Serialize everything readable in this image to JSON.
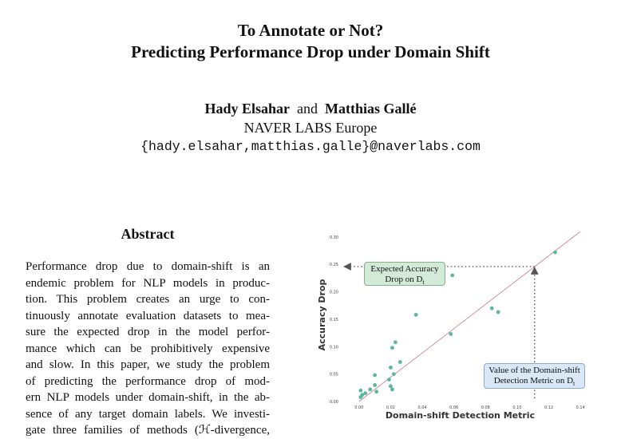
{
  "title": {
    "line1": "To Annotate or Not?",
    "line2": "Predicting Performance Drop under Domain Shift"
  },
  "authors": {
    "author1": "Hady Elsahar",
    "conj": "and",
    "author2": "Matthias Gallé",
    "affiliation": "NAVER LABS Europe",
    "email": "{hady.elsahar,matthias.galle}@naverlabs.com"
  },
  "abstract": {
    "heading": "Abstract",
    "lines": [
      "Performance drop due to domain-shift is an",
      "endemic problem for NLP models in produc-",
      "tion.  This problem creates an urge to con-",
      "tinuously annotate evaluation datasets to mea-",
      "sure the expected drop in the model perfor-",
      "mance which can be prohibitively expensive",
      "and slow.  In this paper, we study the problem",
      "of predicting the performance drop of mod-",
      "ern NLP models under domain-shift, in the ab-",
      "sence of any target domain labels.  We investi-",
      "gate three families of methods (ℋ-divergence,"
    ]
  },
  "figure": {
    "annotation_expected_line1": "Expected Accuracy",
    "annotation_expected_line2": "Drop on D",
    "annotation_value_line1": "Value of the Domain-shift",
    "annotation_value_line2": "Detection Metric on D",
    "subscript": "t"
  },
  "chart_data": {
    "type": "scatter",
    "xlabel": "Domain-shift Detection Metric",
    "ylabel": "Accuracy Drop",
    "xlim": [
      -0.01,
      0.15
    ],
    "ylim": [
      0.0,
      0.31
    ],
    "x_ticks": [
      "0.00",
      "0.02",
      "0.04",
      "0.06",
      "0.08",
      "0.10",
      "0.12",
      "0.14"
    ],
    "y_ticks": [
      "0.00",
      "0.05",
      "0.10",
      "0.15",
      "0.20",
      "0.25",
      "0.30"
    ],
    "points": [
      {
        "x": 0.001,
        "y": 0.008
      },
      {
        "x": 0.002,
        "y": 0.012
      },
      {
        "x": 0.001,
        "y": 0.02
      },
      {
        "x": 0.004,
        "y": 0.015
      },
      {
        "x": 0.007,
        "y": 0.022
      },
      {
        "x": 0.01,
        "y": 0.03
      },
      {
        "x": 0.011,
        "y": 0.018
      },
      {
        "x": 0.01,
        "y": 0.048
      },
      {
        "x": 0.019,
        "y": 0.04
      },
      {
        "x": 0.021,
        "y": 0.022
      },
      {
        "x": 0.02,
        "y": 0.028
      },
      {
        "x": 0.022,
        "y": 0.05
      },
      {
        "x": 0.02,
        "y": 0.062
      },
      {
        "x": 0.026,
        "y": 0.072
      },
      {
        "x": 0.021,
        "y": 0.098
      },
      {
        "x": 0.023,
        "y": 0.108
      },
      {
        "x": 0.036,
        "y": 0.158
      },
      {
        "x": 0.058,
        "y": 0.123
      },
      {
        "x": 0.059,
        "y": 0.23
      },
      {
        "x": 0.084,
        "y": 0.17
      },
      {
        "x": 0.088,
        "y": 0.163
      },
      {
        "x": 0.124,
        "y": 0.272
      }
    ],
    "fit_line": {
      "x": [
        0.0,
        0.14
      ],
      "y": [
        0.0,
        0.31
      ]
    },
    "highlight": {
      "x": 0.111,
      "y": 0.246
    },
    "grid": false
  }
}
